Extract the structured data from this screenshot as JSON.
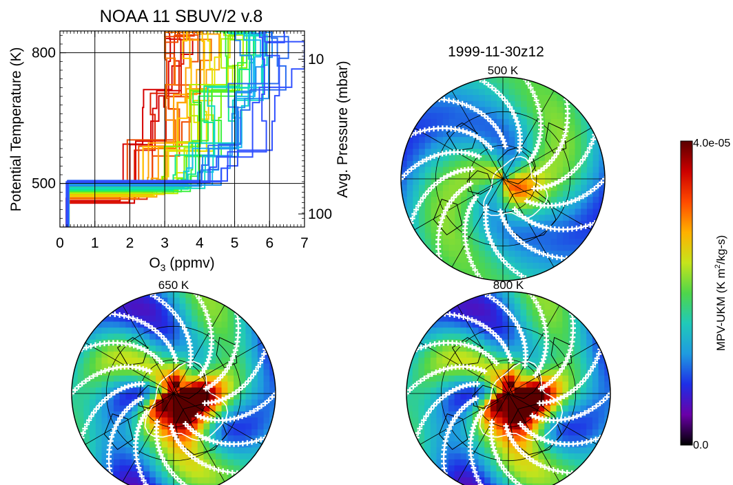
{
  "chart_data": [
    {
      "type": "line",
      "title": "NOAA 11 SBUV/2 v.8",
      "xlabel": "O",
      "xlabel_sub": "3",
      "xlabel_rest": " (ppmv)",
      "ylabel": "Potential Temperature (K)",
      "y2label": "Avg. Pressure (mbar)",
      "xlim": [
        0,
        7
      ],
      "ylim": [
        400,
        850
      ],
      "x_ticks": [
        "0",
        "1",
        "2",
        "3",
        "4",
        "5",
        "6",
        "7"
      ],
      "y_ticks": [
        {
          "value": 500,
          "label": "500"
        },
        {
          "value": 800,
          "label": "800"
        }
      ],
      "y2_ticks": [
        {
          "theta": 430,
          "label": "100"
        },
        {
          "theta": 785,
          "label": "10"
        }
      ],
      "grid": true,
      "colormap": "rainbow (red to blue)",
      "profiles_count": 40
    },
    {
      "type": "heatmap",
      "title": "1999-11-30z12",
      "projection": "north polar stereographic",
      "panels": [
        {
          "label": "500 K",
          "vortex_strength": 0.35
        },
        {
          "label": "650 K",
          "vortex_strength": 1.0
        },
        {
          "label": "800 K",
          "vortex_strength": 1.0
        }
      ],
      "colorbar": {
        "label": "MPV-UKM (K m",
        "label_sup": "2",
        "label_rest": "/kg-s)",
        "max_label": "4.0e-05",
        "min_label": "0.0",
        "range": [
          0,
          4e-05
        ],
        "colors": [
          "#000000",
          "#6a00a8",
          "#1e2ee6",
          "#1f9be0",
          "#20c9b9",
          "#4fd64a",
          "#c6e41b",
          "#ffb000",
          "#ff4a00",
          "#cc0000",
          "#5a0000"
        ]
      }
    }
  ]
}
